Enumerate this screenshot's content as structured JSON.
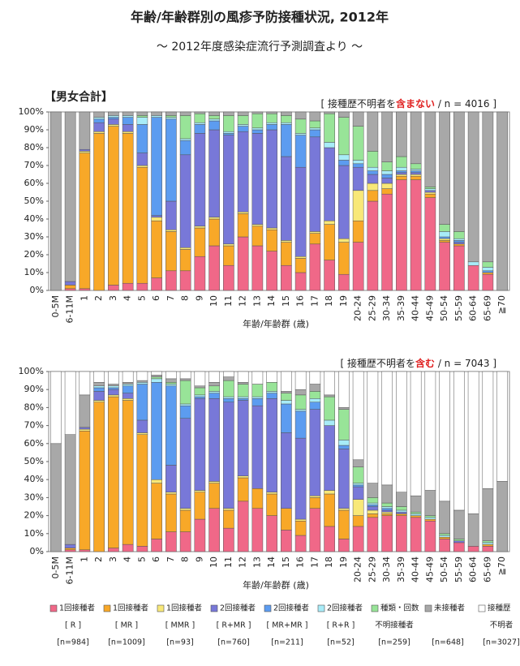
{
  "title": "年齢/年齢群別の風疹予防接種状況, 2012年",
  "subtitle": "～ 2012年度感染症流行予測調査より ～",
  "chart_data": [
    {
      "type": "bar",
      "stacked": true,
      "panel_label": "【男女合計】",
      "note": [
        "[ 接種歴不明者を",
        "含まない",
        " / n = 4016 ]"
      ],
      "xlabel": "年齢/年齢群 (歳)",
      "categories": [
        "0-5M",
        "6-11M",
        "1",
        "2",
        "3",
        "4",
        "5",
        "6",
        "7",
        "8",
        "9",
        "10",
        "11",
        "12",
        "13",
        "14",
        "15",
        "16",
        "17",
        "18",
        "19",
        "20-24",
        "25-29",
        "30-34",
        "35-39",
        "40-44",
        "45-49",
        "50-54",
        "55-59",
        "60-64",
        "65-69",
        "≧70"
      ],
      "ylim": [
        0,
        100
      ],
      "yticks": [
        {
          "value": 0,
          "label": "0%"
        },
        {
          "value": 10,
          "label": "10%"
        },
        {
          "value": 20,
          "label": "20%"
        },
        {
          "value": 30,
          "label": "30%"
        },
        {
          "value": 40,
          "label": "40%"
        },
        {
          "value": 50,
          "label": "50%"
        },
        {
          "value": 60,
          "label": "60%"
        },
        {
          "value": 70,
          "label": "70%"
        },
        {
          "value": 80,
          "label": "80%"
        },
        {
          "value": 90,
          "label": "90%"
        },
        {
          "value": 100,
          "label": "100%"
        }
      ],
      "series": [
        {
          "color": "#f06888",
          "values": [
            0,
            1,
            1,
            0,
            3,
            4,
            4,
            7,
            11,
            11,
            19,
            25,
            14,
            30,
            25,
            22,
            14,
            10,
            26,
            17,
            9,
            27,
            50,
            54,
            62,
            62,
            52,
            27,
            25,
            14,
            9,
            0
          ]
        },
        {
          "color": "#f8a828",
          "values": [
            0,
            2,
            76,
            88,
            89,
            84,
            65,
            32,
            22,
            12,
            16,
            15,
            11,
            13,
            11,
            12,
            13,
            8,
            6,
            20,
            18,
            12,
            6,
            3,
            2,
            2,
            2,
            1,
            1,
            0,
            1,
            0
          ]
        },
        {
          "color": "#f8e878",
          "values": [
            0,
            0,
            1,
            1,
            1,
            1,
            1,
            2,
            1,
            1,
            1,
            1,
            1,
            1,
            1,
            1,
            1,
            1,
            1,
            2,
            2,
            17,
            4,
            3,
            1,
            1,
            1,
            1,
            0,
            0,
            0,
            0
          ]
        },
        {
          "color": "#7878d8",
          "values": [
            0,
            2,
            1,
            5,
            3,
            4,
            7,
            1,
            16,
            52,
            52,
            49,
            61,
            45,
            51,
            55,
            47,
            50,
            53,
            41,
            41,
            13,
            5,
            3,
            1,
            1,
            1,
            0,
            1,
            0,
            0,
            0
          ]
        },
        {
          "color": "#5c9cf0",
          "values": [
            0,
            0,
            0,
            2,
            1,
            4,
            16,
            55,
            46,
            8,
            5,
            5,
            1,
            3,
            2,
            3,
            18,
            18,
            4,
            0,
            3,
            2,
            2,
            2,
            1,
            1,
            0,
            1,
            1,
            0,
            1,
            0
          ]
        },
        {
          "color": "#a8ecf8",
          "values": [
            0,
            0,
            0,
            1,
            1,
            1,
            4,
            1,
            1,
            1,
            1,
            1,
            1,
            1,
            1,
            1,
            1,
            1,
            1,
            3,
            3,
            2,
            2,
            2,
            2,
            1,
            1,
            3,
            1,
            2,
            2,
            0
          ]
        },
        {
          "color": "#98e498",
          "values": [
            0,
            0,
            0,
            0,
            0,
            0,
            1,
            0,
            1,
            13,
            5,
            2,
            9,
            5,
            8,
            5,
            4,
            8,
            4,
            16,
            21,
            19,
            9,
            5,
            6,
            3,
            1,
            4,
            4,
            0,
            3,
            0
          ]
        },
        {
          "color": "#a8a8a8",
          "values": [
            100,
            95,
            21,
            3,
            2,
            2,
            2,
            2,
            2,
            2,
            1,
            2,
            2,
            2,
            1,
            1,
            2,
            4,
            5,
            1,
            3,
            8,
            22,
            28,
            25,
            29,
            42,
            63,
            67,
            84,
            84,
            100
          ]
        }
      ]
    },
    {
      "type": "bar",
      "stacked": true,
      "note": [
        "[ 接種歴不明者を",
        "含む",
        " / n = 7043 ]"
      ],
      "xlabel": "年齢/年齢群 (歳)",
      "categories": [
        "0-5M",
        "6-11M",
        "1",
        "2",
        "3",
        "4",
        "5",
        "6",
        "7",
        "8",
        "9",
        "10",
        "11",
        "12",
        "13",
        "14",
        "15",
        "16",
        "17",
        "18",
        "19",
        "20-24",
        "25-29",
        "30-34",
        "35-39",
        "40-44",
        "45-49",
        "50-54",
        "55-59",
        "60-64",
        "65-69",
        "≧70"
      ],
      "ylim": [
        0,
        100
      ],
      "yticks": [
        {
          "value": 0,
          "label": "0%"
        },
        {
          "value": 10,
          "label": "10%"
        },
        {
          "value": 20,
          "label": "20%"
        },
        {
          "value": 30,
          "label": "30%"
        },
        {
          "value": 40,
          "label": "40%"
        },
        {
          "value": 50,
          "label": "50%"
        },
        {
          "value": 60,
          "label": "60%"
        },
        {
          "value": 70,
          "label": "70%"
        },
        {
          "value": 80,
          "label": "80%"
        },
        {
          "value": 90,
          "label": "90%"
        },
        {
          "value": 100,
          "label": "100%"
        }
      ],
      "series": [
        {
          "name": "1回接種者",
          "sub": "[ R ]",
          "n": "[n=984]",
          "color": "#f06888",
          "values": [
            0,
            1,
            1,
            0,
            2,
            4,
            3,
            7,
            11,
            11,
            18,
            24,
            13,
            28,
            24,
            20,
            12,
            9,
            24,
            14,
            7,
            14,
            19,
            20,
            20,
            19,
            17,
            7,
            5,
            3,
            3,
            0
          ]
        },
        {
          "name": "1回接種者",
          "sub": "[ MR ]",
          "n": "[n=1009]",
          "color": "#f8a828",
          "values": [
            0,
            1,
            66,
            83,
            84,
            80,
            62,
            31,
            21,
            12,
            15,
            14,
            10,
            13,
            11,
            12,
            12,
            8,
            6,
            18,
            16,
            6,
            2,
            1,
            1,
            1,
            1,
            1,
            0,
            0,
            1,
            0
          ]
        },
        {
          "name": "1回接種者",
          "sub": "[ MMR ]",
          "n": "[n=93]",
          "color": "#f8e878",
          "values": [
            0,
            0,
            1,
            1,
            1,
            1,
            1,
            2,
            1,
            1,
            1,
            1,
            1,
            1,
            0,
            1,
            0,
            1,
            1,
            2,
            1,
            9,
            2,
            1,
            0,
            0,
            0,
            0,
            0,
            0,
            0,
            0
          ]
        },
        {
          "name": "2回接種者",
          "sub": "[ R+MR ]",
          "n": "[n=760]",
          "color": "#7878d8",
          "values": [
            0,
            2,
            1,
            5,
            3,
            3,
            7,
            0,
            15,
            50,
            51,
            46,
            59,
            42,
            46,
            52,
            42,
            45,
            48,
            36,
            33,
            7,
            2,
            1,
            1,
            0,
            0,
            0,
            1,
            0,
            0,
            0
          ]
        },
        {
          "name": "2回接種者",
          "sub": "[ MR+MR ]",
          "n": "[n=211]",
          "color": "#5c9cf0",
          "values": [
            0,
            0,
            0,
            2,
            1,
            4,
            20,
            54,
            44,
            7,
            1,
            3,
            2,
            1,
            4,
            3,
            16,
            15,
            4,
            0,
            2,
            1,
            1,
            1,
            0,
            0,
            0,
            0,
            0,
            0,
            0,
            0
          ]
        },
        {
          "name": "2回接種者",
          "sub": "[ R+R ]",
          "n": "[n=52]",
          "color": "#a8ecf8",
          "values": [
            0,
            0,
            0,
            1,
            1,
            1,
            1,
            2,
            1,
            1,
            1,
            1,
            1,
            1,
            1,
            1,
            2,
            1,
            2,
            3,
            3,
            1,
            1,
            1,
            1,
            1,
            1,
            1,
            0,
            0,
            1,
            0
          ]
        },
        {
          "name": "種類・回数",
          "sub": "不明接種者",
          "n": "[n=259]",
          "color": "#98e498",
          "values": [
            0,
            0,
            0,
            0,
            0,
            0,
            0,
            1,
            1,
            13,
            4,
            3,
            9,
            7,
            7,
            5,
            4,
            8,
            4,
            13,
            17,
            9,
            3,
            2,
            2,
            1,
            1,
            1,
            1,
            0,
            1,
            0
          ]
        },
        {
          "name": "未接種者",
          "n": "[n=648]",
          "color": "#a8a8a8",
          "values": [
            60,
            61,
            18,
            2,
            1,
            1,
            1,
            1,
            2,
            1,
            1,
            2,
            2,
            1,
            0,
            0,
            1,
            3,
            4,
            1,
            1,
            4,
            8,
            10,
            8,
            9,
            14,
            18,
            16,
            18,
            29,
            39
          ]
        },
        {
          "name": "接種歴",
          "sub": "不明者",
          "n": "[n=3027]",
          "color": "#ffffff",
          "values": [
            40,
            35,
            13,
            6,
            7,
            6,
            5,
            2,
            4,
            4,
            8,
            6,
            3,
            6,
            7,
            6,
            11,
            10,
            7,
            13,
            20,
            49,
            62,
            63,
            67,
            69,
            66,
            72,
            77,
            79,
            65,
            61
          ]
        }
      ]
    }
  ]
}
